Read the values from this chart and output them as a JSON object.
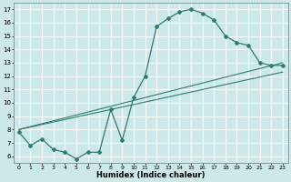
{
  "xlabel": "Humidex (Indice chaleur)",
  "background_color": "#cce8e8",
  "grid_color": "#b0d8d8",
  "line_color": "#2e7d6e",
  "xlim": [
    -0.5,
    23.5
  ],
  "ylim": [
    5.5,
    17.5
  ],
  "xticks": [
    0,
    1,
    2,
    3,
    4,
    5,
    6,
    7,
    8,
    9,
    10,
    11,
    12,
    13,
    14,
    15,
    16,
    17,
    18,
    19,
    20,
    21,
    22,
    23
  ],
  "yticks": [
    6,
    7,
    8,
    9,
    10,
    11,
    12,
    13,
    14,
    15,
    16,
    17
  ],
  "main_curve_x": [
    0,
    1,
    2,
    3,
    4,
    5,
    6,
    7,
    8,
    9,
    10,
    11,
    12,
    13,
    14,
    15,
    16,
    17,
    18,
    19,
    20,
    21,
    22,
    23
  ],
  "main_curve_y": [
    7.8,
    6.8,
    7.3,
    6.5,
    6.3,
    5.8,
    6.3,
    6.3,
    9.5,
    7.2,
    10.4,
    12.0,
    15.7,
    16.3,
    16.8,
    17.0,
    16.7,
    16.2,
    15.0,
    14.5,
    14.3,
    13.0,
    12.8,
    12.8
  ],
  "diag_line1_x": [
    0,
    23
  ],
  "diag_line1_y": [
    8.0,
    13.0
  ],
  "diag_line2_x": [
    0,
    23
  ],
  "diag_line2_y": [
    8.0,
    12.3
  ]
}
